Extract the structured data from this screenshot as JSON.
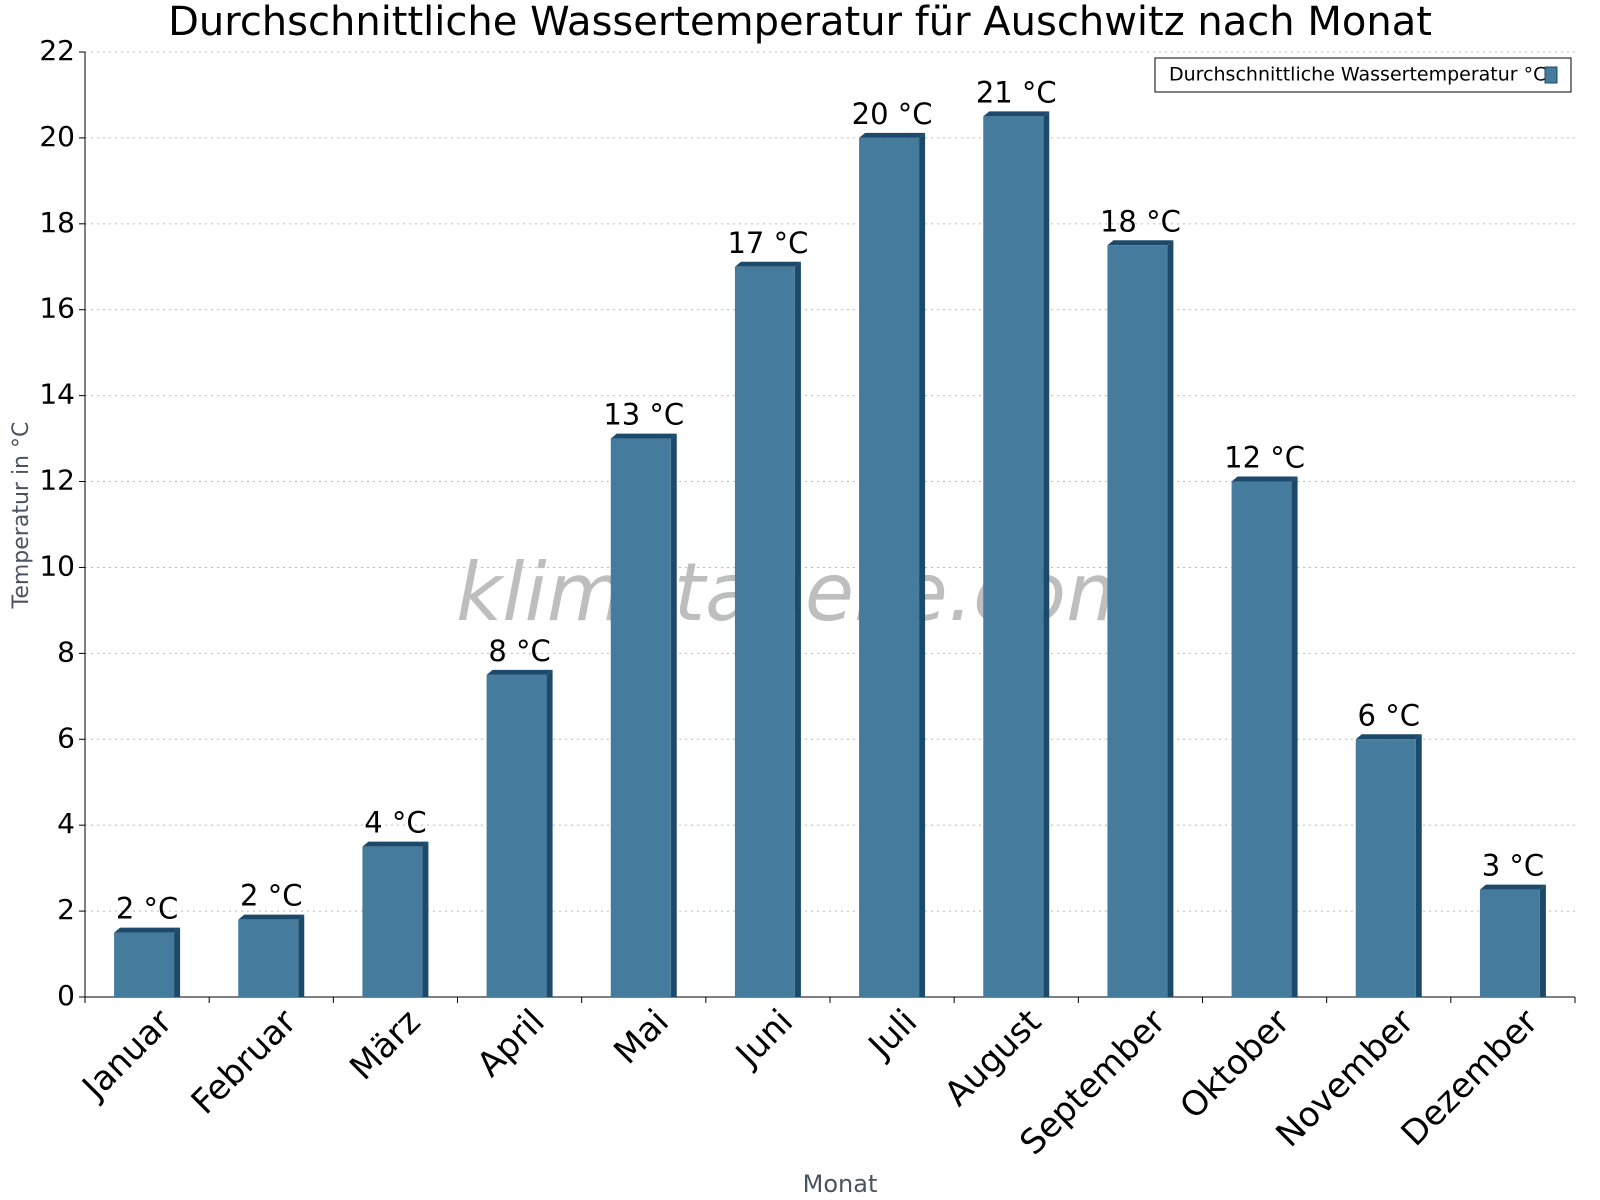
{
  "chart_data": {
    "type": "bar",
    "title": "Durchschnittliche Wassertemperatur für Auschwitz nach Monat",
    "watermark": "klimatabelle.com",
    "x_label": "Monat",
    "y_label": "Temperatur in °C",
    "categories": [
      "Januar",
      "Februar",
      "März",
      "April",
      "Mai",
      "Juni",
      "Juli",
      "August",
      "September",
      "Oktober",
      "November",
      "Dezember"
    ],
    "series": [
      {
        "name": "Durchschnittliche Wassertemperatur °C",
        "color": "#457b9d",
        "values": [
          1.5,
          1.8,
          3.5,
          7.5,
          13,
          17,
          20,
          20.5,
          17.5,
          12,
          6,
          2.5
        ],
        "value_labels": [
          "2 °C",
          "2 °C",
          "4 °C",
          "8 °C",
          "13 °C",
          "17 °C",
          "20 °C",
          "21 °C",
          "18 °C",
          "12 °C",
          "6 °C",
          "3 °C"
        ]
      }
    ],
    "ylim": [
      0,
      22
    ],
    "yticks": [
      0,
      2,
      4,
      6,
      8,
      10,
      12,
      14,
      16,
      18,
      20,
      22
    ],
    "grid": true,
    "legend": "top-right"
  }
}
